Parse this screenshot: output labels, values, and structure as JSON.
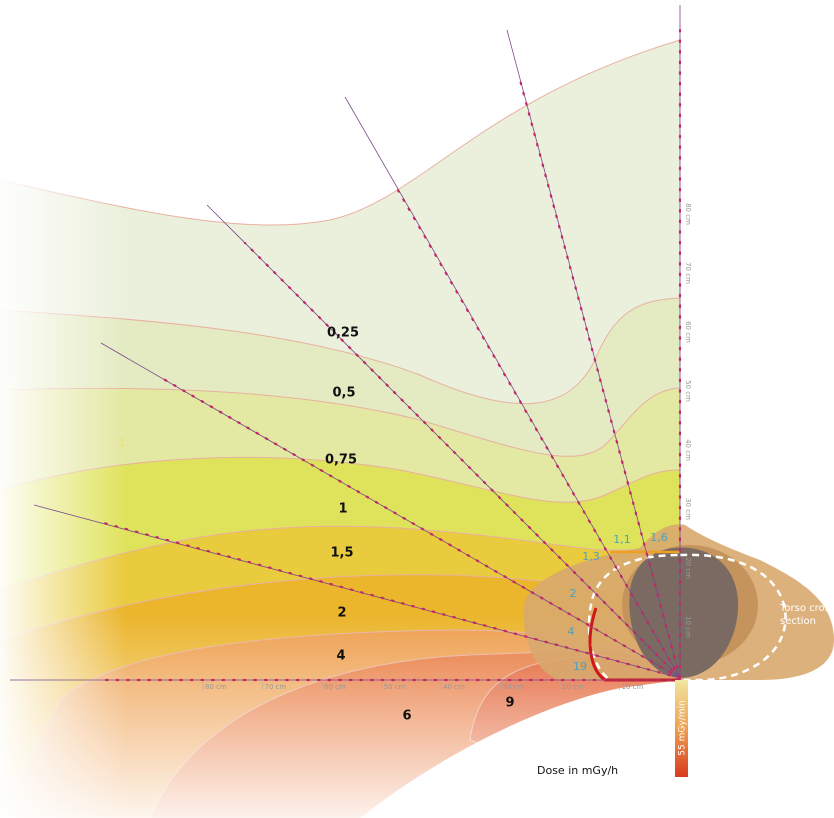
{
  "dose_labels": [
    "0,25",
    "0,5",
    "0,75",
    "1",
    "1,5",
    "2",
    "4",
    "6",
    "9",
    "1"
  ],
  "edge_dose_labels": [
    "1,3",
    "1,1",
    "1,6",
    "2",
    "4",
    "19"
  ],
  "horizontal_distance_labels": [
    "80 cm",
    "70 cm",
    "60 cm",
    "50 cm",
    "40 cm",
    "30 cm",
    "20 cm",
    "10 cm"
  ],
  "vertical_distance_labels": [
    "80 cm",
    "70 cm",
    "60 cm",
    "50 cm",
    "40 cm",
    "30 cm",
    "20 cm",
    "10 cm"
  ],
  "torso_label": [
    "Torso cross",
    "section"
  ],
  "legend": {
    "title": "Dose in mGy/h",
    "bar_label": "55 mGy/min"
  }
}
